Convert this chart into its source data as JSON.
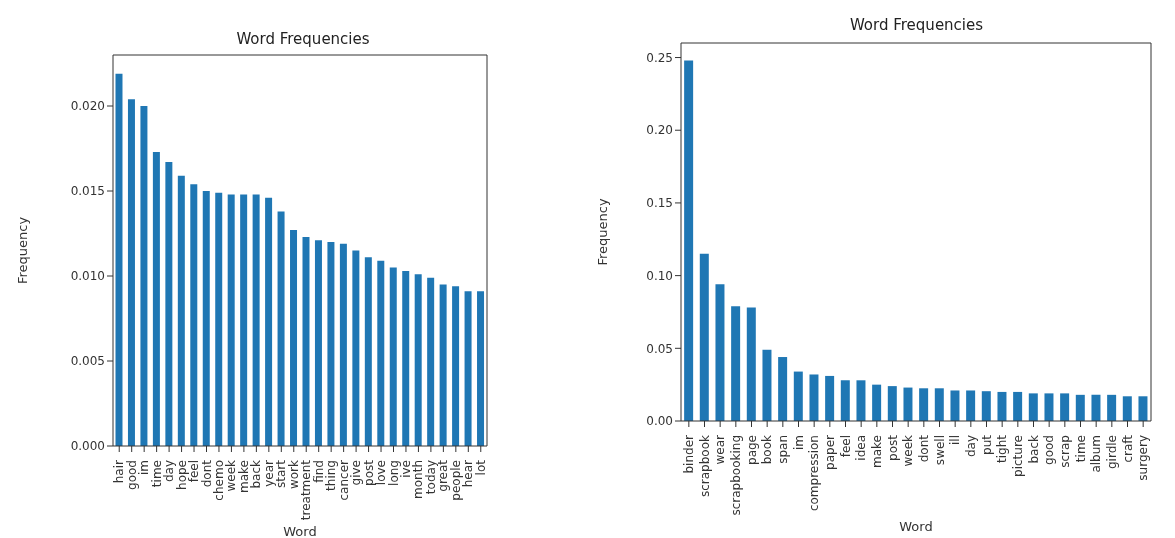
{
  "chart_data": [
    {
      "type": "bar",
      "title": "Word Frequencies",
      "xlabel": "Word",
      "ylabel": "Frequency",
      "color": "#1f77b4",
      "categories": [
        "hair",
        "good",
        "im",
        "time",
        "day",
        "hope",
        "feel",
        "dont",
        "chemo",
        "week",
        "make",
        "back",
        "year",
        "start",
        "work",
        "treatment",
        "find",
        "thing",
        "cancer",
        "give",
        "post",
        "love",
        "long",
        "ive",
        "month",
        "today",
        "great",
        "people",
        "hear",
        "lot"
      ],
      "values": [
        0.0219,
        0.0204,
        0.02,
        0.0173,
        0.0167,
        0.0159,
        0.0154,
        0.015,
        0.0149,
        0.0148,
        0.0148,
        0.0148,
        0.0146,
        0.0138,
        0.0127,
        0.0123,
        0.0121,
        0.012,
        0.0119,
        0.0115,
        0.0111,
        0.0109,
        0.0105,
        0.0103,
        0.0101,
        0.0099,
        0.0095,
        0.0094,
        0.0091,
        0.0091
      ],
      "ylim": [
        0,
        0.023
      ],
      "yticks": [
        {
          "value": 0,
          "label": "0.000"
        },
        {
          "value": 0.005,
          "label": "0.005"
        },
        {
          "value": 0.01,
          "label": "0.010"
        },
        {
          "value": 0.015,
          "label": "0.015"
        },
        {
          "value": 0.02,
          "label": "0.020"
        }
      ]
    },
    {
      "type": "bar",
      "title": "Word Frequencies",
      "xlabel": "Word",
      "ylabel": "Frequency",
      "color": "#1f77b4",
      "categories": [
        "binder",
        "scrapbook",
        "wear",
        "scrapbooking",
        "page",
        "book",
        "span",
        "im",
        "compression",
        "paper",
        "feel",
        "idea",
        "make",
        "post",
        "week",
        "dont",
        "swell",
        "ill",
        "day",
        "put",
        "tight",
        "picture",
        "back",
        "good",
        "scrap",
        "time",
        "album",
        "girdle",
        "craft",
        "surgery"
      ],
      "values": [
        0.248,
        0.115,
        0.094,
        0.079,
        0.078,
        0.049,
        0.044,
        0.034,
        0.032,
        0.031,
        0.028,
        0.028,
        0.025,
        0.024,
        0.023,
        0.0225,
        0.0225,
        0.021,
        0.021,
        0.0205,
        0.02,
        0.02,
        0.019,
        0.019,
        0.019,
        0.018,
        0.018,
        0.018,
        0.017,
        0.017
      ],
      "ylim": [
        0,
        0.26
      ],
      "yticks": [
        {
          "value": 0,
          "label": "0.00"
        },
        {
          "value": 0.05,
          "label": "0.05"
        },
        {
          "value": 0.1,
          "label": "0.10"
        },
        {
          "value": 0.15,
          "label": "0.15"
        },
        {
          "value": 0.2,
          "label": "0.20"
        },
        {
          "value": 0.25,
          "label": "0.25"
        }
      ]
    }
  ]
}
